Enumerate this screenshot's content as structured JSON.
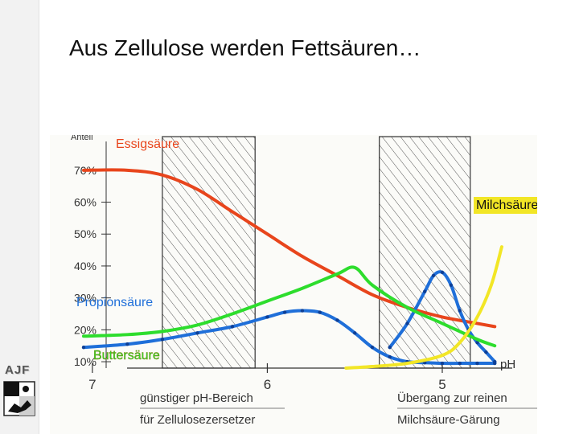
{
  "slide": {
    "title": "Aus Zellulose werden Fettsäuren…",
    "brand": "AJF",
    "logo_icon": "canton-crest-icon"
  },
  "chart_data": {
    "type": "line",
    "title": "",
    "ylabel": "Anteil",
    "xlabel": "pH",
    "x_reversed": true,
    "xlim": [
      7.05,
      4.6
    ],
    "ylim": [
      8,
      76
    ],
    "x_ticks": [
      {
        "value": 7,
        "label": "7"
      },
      {
        "value": 6,
        "label": "6"
      },
      {
        "value": 5,
        "label": "5"
      }
    ],
    "y_ticks": [
      {
        "value": 70,
        "label": "70%"
      },
      {
        "value": 60,
        "label": "60%"
      },
      {
        "value": 50,
        "label": "50%"
      },
      {
        "value": 40,
        "label": "40%"
      },
      {
        "value": 30,
        "label": "30%"
      },
      {
        "value": 20,
        "label": "20%"
      },
      {
        "value": 10,
        "label": "10%"
      }
    ],
    "grid": false,
    "shaded_bands": [
      {
        "from": 6.6,
        "to": 6.07
      },
      {
        "from": 5.36,
        "to": 4.84
      }
    ],
    "region_labels": [
      {
        "line1": "günstiger pH-Bereich",
        "line2": "für Zellulosezersetzer"
      },
      {
        "line1": "Übergang zur reinen",
        "line2": "Milchsäure-Gärung"
      }
    ],
    "series": [
      {
        "name": "Essigsäure",
        "color": "#e8451c",
        "x": [
          7.05,
          6.8,
          6.6,
          6.4,
          6.2,
          6.0,
          5.8,
          5.6,
          5.4,
          5.2,
          5.0,
          4.8,
          4.7
        ],
        "y": [
          70,
          70,
          68.5,
          64,
          57,
          50,
          43,
          37,
          31,
          27,
          24,
          22,
          21
        ]
      },
      {
        "name": "Propionsäure",
        "color": "#1f6fd9",
        "x": [
          7.05,
          6.8,
          6.6,
          6.4,
          6.2,
          6.0,
          5.9,
          5.8,
          5.7,
          5.6,
          5.5,
          5.4,
          5.3,
          5.2,
          5.1,
          5.0,
          4.9,
          4.8,
          4.7
        ],
        "y": [
          14.5,
          15.5,
          17,
          19,
          21,
          24,
          25.5,
          26,
          25.5,
          23,
          19,
          14.5,
          11.5,
          10,
          9.7,
          9.5,
          9.5,
          9.5,
          9.5
        ]
      },
      {
        "name": "Buttersäure",
        "color": "#1f6fd9",
        "x": [
          5.3,
          5.2,
          5.1,
          5.05,
          5.0,
          4.95,
          4.9,
          4.85,
          4.8,
          4.75,
          4.7
        ],
        "y": [
          14.5,
          22,
          32,
          37,
          38,
          34,
          26,
          20,
          16,
          13,
          10
        ]
      },
      {
        "name": "",
        "color": "#2ddd2d",
        "x": [
          7.05,
          6.8,
          6.6,
          6.4,
          6.2,
          6.0,
          5.8,
          5.6,
          5.5,
          5.4,
          5.2,
          5.0,
          4.8,
          4.7
        ],
        "y": [
          18,
          18.5,
          19.5,
          21.5,
          25,
          29,
          33,
          37.5,
          39.5,
          34,
          27,
          22,
          17,
          15
        ]
      },
      {
        "name": "Milchsäure",
        "color": "#f2e626",
        "x": [
          5.55,
          5.4,
          5.2,
          5.0,
          4.9,
          4.8,
          4.72,
          4.66
        ],
        "y": [
          8,
          8.5,
          9.5,
          12,
          16,
          24,
          34,
          46
        ]
      }
    ],
    "labels": {
      "essig": "Essigsäure",
      "milch": "Milchsäure",
      "propion": "Propionsäure",
      "butter": "Buttersäure"
    },
    "colors": {
      "band_hatch": "#444444",
      "axis": "#333333",
      "label_red": "#e8451c",
      "label_blue": "#1f6fd9",
      "label_green": "#2ddd2d",
      "label_yellow": "#f2e626"
    }
  }
}
